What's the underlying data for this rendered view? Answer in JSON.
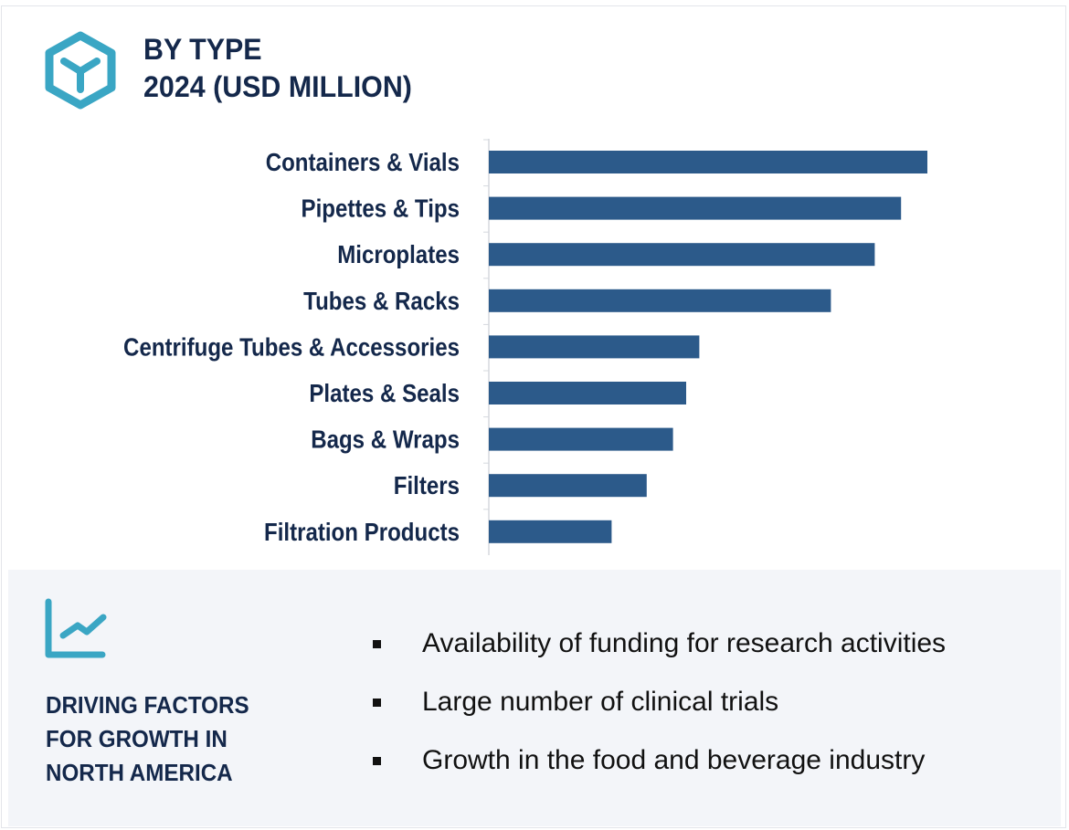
{
  "header": {
    "title_line1": "BY TYPE",
    "title_line2": "2024 (USD MILLION)",
    "icon": "hexagon-cube-icon"
  },
  "colors": {
    "bar": "#2c5a8a",
    "accent": "#3aa6c4",
    "text": "#14284b",
    "panel_bg": "#f3f5f9"
  },
  "chart_data": {
    "type": "bar",
    "orientation": "horizontal",
    "title": "BY TYPE 2024 (USD MILLION)",
    "categories": [
      "Containers & Vials",
      "Pipettes & Tips",
      "Microplates",
      "Tubes & Racks",
      "Centrifuge Tubes & Accessories",
      "Plates & Seals",
      "Bags & Wraps",
      "Filters",
      "Filtration Products"
    ],
    "values": [
      1.0,
      0.94,
      0.88,
      0.78,
      0.48,
      0.45,
      0.42,
      0.36,
      0.28
    ],
    "value_note_scale": "relative",
    "grid": false
  },
  "drivers": {
    "icon": "trend-chart-icon",
    "title_lines": [
      "DRIVING FACTORS",
      "FOR GROWTH IN",
      "NORTH AMERICA"
    ],
    "items": [
      "Availability of funding for research activities",
      "Large number of clinical trials",
      "Growth in the food and beverage industry"
    ]
  }
}
